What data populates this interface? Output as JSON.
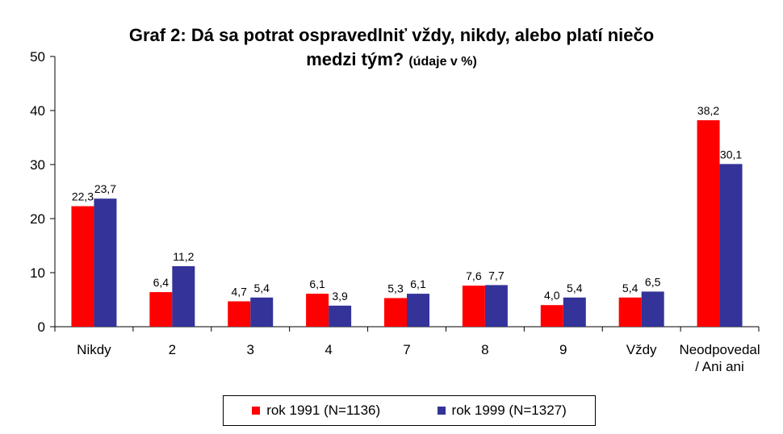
{
  "chart_data": {
    "type": "bar",
    "title_line1": "Graf 2: Dá sa potrat ospravedlniť vždy, nikdy, alebo platí niečo",
    "title_line2": "medzi tým?",
    "title_note": "(údaje v %)",
    "categories": [
      "Nikdy",
      "2",
      "3",
      "4",
      "7",
      "8",
      "9",
      "Vždy",
      "Neodpovedal / Ani ani"
    ],
    "category_lines": [
      [
        "Nikdy"
      ],
      [
        "2"
      ],
      [
        "3"
      ],
      [
        "4"
      ],
      [
        "7"
      ],
      [
        "8"
      ],
      [
        "9"
      ],
      [
        "Vždy"
      ],
      [
        "Neodpovedal",
        "/ Ani ani"
      ]
    ],
    "series": [
      {
        "name": "rok 1991 (N=1136)",
        "color": "#ff0000",
        "values": [
          22.3,
          6.4,
          4.7,
          6.1,
          5.3,
          7.6,
          4.0,
          5.4,
          38.2
        ],
        "labels": [
          "22,3",
          "6,4",
          "4,7",
          "6,1",
          "5,3",
          "7,6",
          "4,0",
          "5,4",
          "38,2"
        ]
      },
      {
        "name": "rok 1999 (N=1327)",
        "color": "#333399",
        "values": [
          23.7,
          11.2,
          5.4,
          3.9,
          6.1,
          7.7,
          5.4,
          6.5,
          30.1
        ],
        "labels": [
          "23,7",
          "11,2",
          "5,4",
          "3,9",
          "6,1",
          "7,7",
          "5,4",
          "6,5",
          "30,1"
        ]
      }
    ],
    "ylim": [
      0,
      50
    ],
    "yticks": [
      0,
      10,
      20,
      30,
      40,
      50
    ],
    "grid": false,
    "legend_position": "bottom"
  }
}
